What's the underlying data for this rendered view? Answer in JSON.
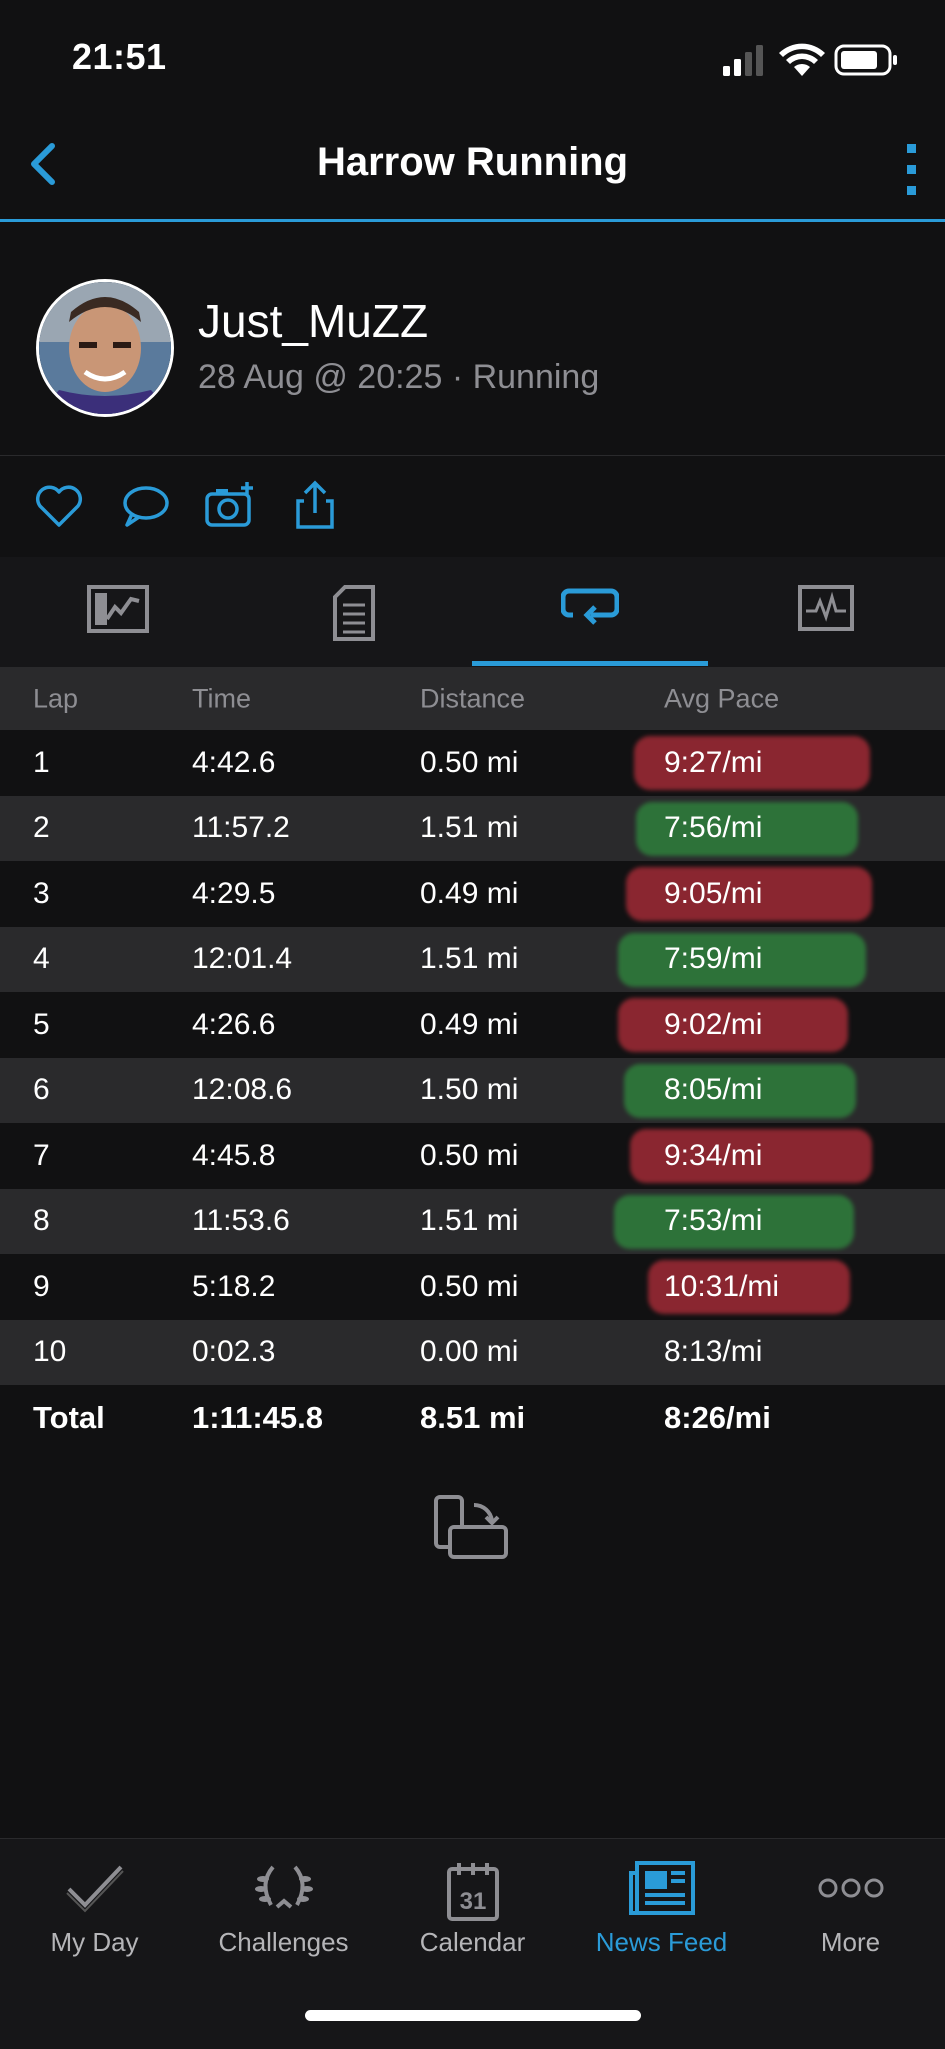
{
  "status_bar": {
    "time": "21:51"
  },
  "nav": {
    "title": "Harrow Running"
  },
  "profile": {
    "username": "Just_MuZZ",
    "subtitle": "28 Aug @ 20:25 · Running"
  },
  "laps": {
    "headers": [
      "Lap",
      "Time",
      "Distance",
      "Avg Pace"
    ],
    "rows": [
      {
        "lap": "1",
        "time": "4:42.6",
        "distance": "0.50 mi",
        "pace": "9:27/mi",
        "highlight": "red"
      },
      {
        "lap": "2",
        "time": "11:57.2",
        "distance": "1.51 mi",
        "pace": "7:56/mi",
        "highlight": "green"
      },
      {
        "lap": "3",
        "time": "4:29.5",
        "distance": "0.49 mi",
        "pace": "9:05/mi",
        "highlight": "red"
      },
      {
        "lap": "4",
        "time": "12:01.4",
        "distance": "1.51 mi",
        "pace": "7:59/mi",
        "highlight": "green"
      },
      {
        "lap": "5",
        "time": "4:26.6",
        "distance": "0.49 mi",
        "pace": "9:02/mi",
        "highlight": "red"
      },
      {
        "lap": "6",
        "time": "12:08.6",
        "distance": "1.50 mi",
        "pace": "8:05/mi",
        "highlight": "green"
      },
      {
        "lap": "7",
        "time": "4:45.8",
        "distance": "0.50 mi",
        "pace": "9:34/mi",
        "highlight": "red"
      },
      {
        "lap": "8",
        "time": "11:53.6",
        "distance": "1.51 mi",
        "pace": "7:53/mi",
        "highlight": "green"
      },
      {
        "lap": "9",
        "time": "5:18.2",
        "distance": "0.50 mi",
        "pace": "10:31/mi",
        "highlight": "red"
      },
      {
        "lap": "10",
        "time": "0:02.3",
        "distance": "0.00 mi",
        "pace": "8:13/mi",
        "highlight": "none"
      }
    ],
    "total": {
      "label": "Total",
      "time": "1:11:45.8",
      "distance": "8.51 mi",
      "pace": "8:26/mi"
    }
  },
  "bottom_nav": {
    "items": [
      {
        "label": "My Day",
        "icon": "check-icon"
      },
      {
        "label": "Challenges",
        "icon": "laurel-icon"
      },
      {
        "label": "Calendar",
        "icon": "calendar-icon",
        "day": "31"
      },
      {
        "label": "News Feed",
        "icon": "news-feed-icon",
        "active": true
      },
      {
        "label": "More",
        "icon": "more-dots-icon"
      }
    ]
  },
  "colors": {
    "accent": "#2a9bd8",
    "highlight_red": "#b32e3a",
    "highlight_green": "#2f8b3e",
    "background": "#111112"
  }
}
